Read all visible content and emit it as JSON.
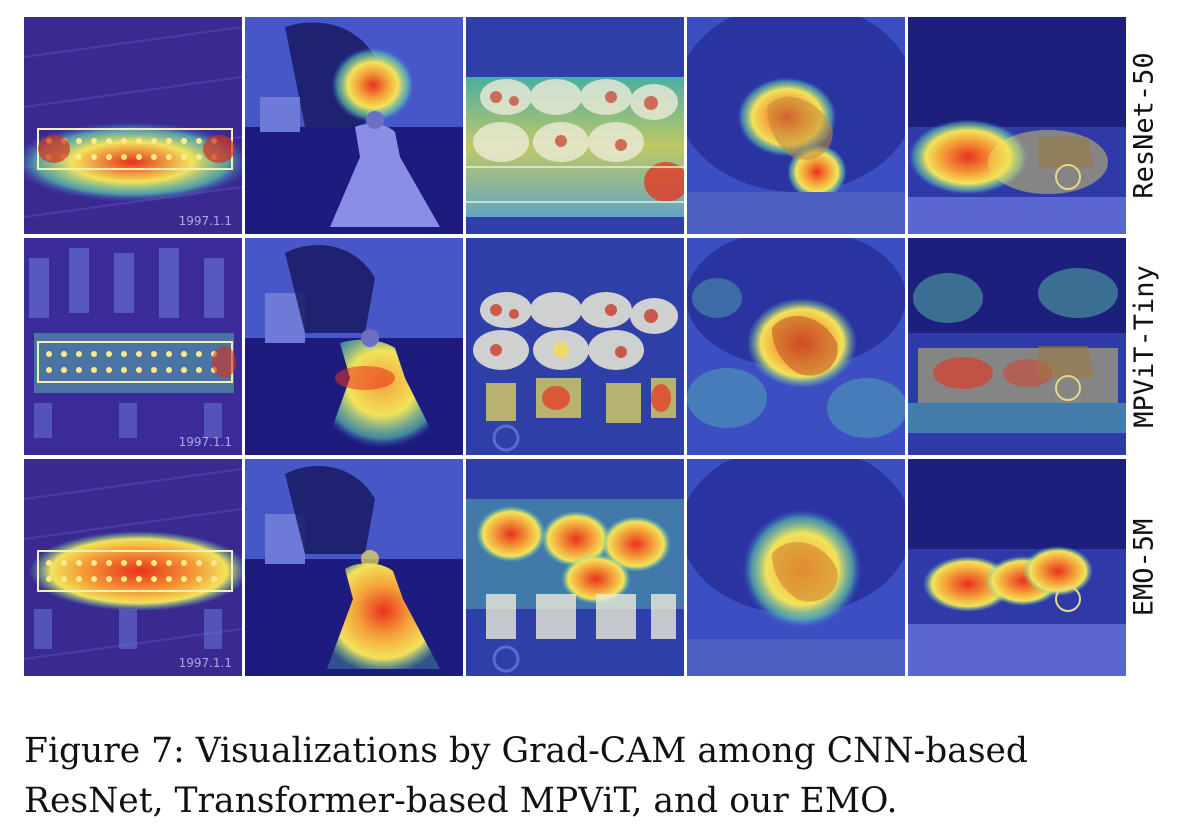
{
  "figure": {
    "rows": [
      {
        "label": "ResNet-50"
      },
      {
        "label": "MPViT-Tiny"
      },
      {
        "label": "EMO-5M"
      }
    ],
    "date_stamp": "1997.1.1",
    "colors": {
      "cold": "#1d1b9a",
      "cool": "#3b5bd6",
      "warm": "#f2e35a",
      "hot": "#e8321d"
    }
  },
  "caption": "Figure 7: Visualizations by Grad-CAM among CNN-based ResNet, Transformer-based MPViT, and our EMO."
}
